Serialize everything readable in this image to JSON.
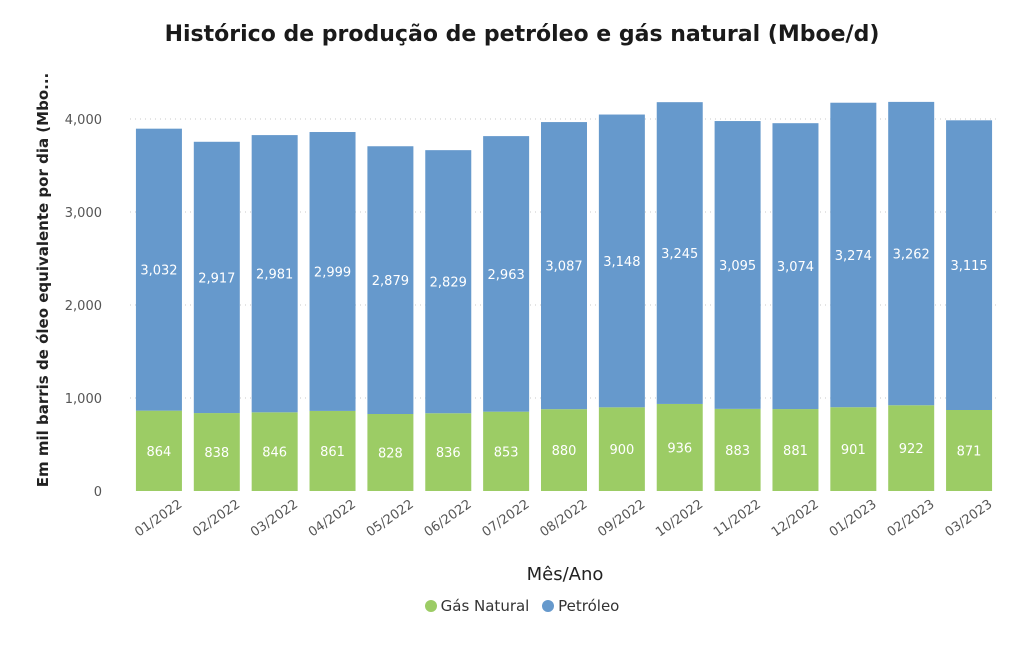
{
  "chart_data": {
    "type": "bar",
    "stacked": true,
    "title": "Histórico de produção de petróleo e gás natural (Mboe/d)",
    "xlabel": "Mês/Ano",
    "ylabel": "Em mil barris de óleo equivalente por dia (Mbo...",
    "categories": [
      "01/2022",
      "02/2022",
      "03/2022",
      "04/2022",
      "05/2022",
      "06/2022",
      "07/2022",
      "08/2022",
      "09/2022",
      "10/2022",
      "11/2022",
      "12/2022",
      "01/2023",
      "02/2023",
      "03/2023"
    ],
    "series": [
      {
        "name": "Gás Natural",
        "color": "#9ccc65",
        "values": [
          864,
          838,
          846,
          861,
          828,
          836,
          853,
          880,
          900,
          936,
          883,
          881,
          901,
          922,
          871
        ]
      },
      {
        "name": "Petróleo",
        "color": "#6699cc",
        "values": [
          3032,
          2917,
          2981,
          2999,
          2879,
          2829,
          2963,
          3087,
          3148,
          3245,
          3095,
          3074,
          3274,
          3262,
          3115
        ]
      }
    ],
    "ylim": [
      0,
      4400
    ],
    "yticks": [
      0,
      1000,
      2000,
      3000,
      4000
    ],
    "ytick_labels": [
      "0",
      "1,000",
      "2,000",
      "3,000",
      "4,000"
    ],
    "grid": true,
    "legend_position": "bottom"
  }
}
